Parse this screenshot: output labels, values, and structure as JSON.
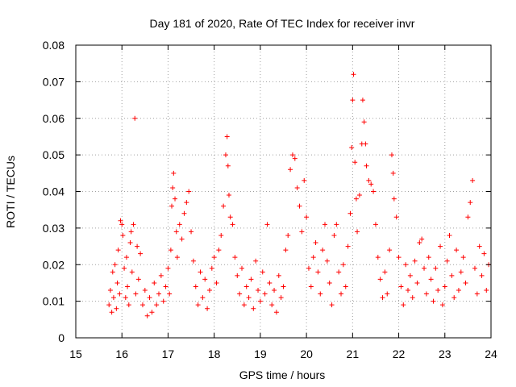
{
  "chart_data": {
    "type": "scatter",
    "title": "Day 181 of 2020, Rate Of TEC Index for receiver invr",
    "xlabel": "GPS time / hours",
    "ylabel": "ROTI / TECUs",
    "xlim": [
      15,
      24
    ],
    "ylim": [
      0,
      0.08
    ],
    "xticks": [
      "15",
      "16",
      "17",
      "18",
      "19",
      "20",
      "21",
      "22",
      "23",
      "24"
    ],
    "yticks": [
      "0",
      "0.01",
      "0.02",
      "0.03",
      "0.04",
      "0.05",
      "0.06",
      "0.07",
      "0.08"
    ],
    "grid": true,
    "marker": "+",
    "color": "#ff0000",
    "series": [
      {
        "name": "ROTI",
        "points": [
          [
            15.72,
            0.009
          ],
          [
            15.75,
            0.013
          ],
          [
            15.78,
            0.007
          ],
          [
            15.8,
            0.018
          ],
          [
            15.82,
            0.011
          ],
          [
            15.85,
            0.02
          ],
          [
            15.88,
            0.008
          ],
          [
            15.9,
            0.015
          ],
          [
            15.92,
            0.024
          ],
          [
            15.95,
            0.012
          ],
          [
            15.97,
            0.032
          ],
          [
            16.0,
            0.031
          ],
          [
            16.02,
            0.028
          ],
          [
            16.05,
            0.019
          ],
          [
            16.08,
            0.011
          ],
          [
            16.1,
            0.022
          ],
          [
            16.12,
            0.014
          ],
          [
            16.15,
            0.009
          ],
          [
            16.18,
            0.026
          ],
          [
            16.2,
            0.029
          ],
          [
            16.22,
            0.018
          ],
          [
            16.25,
            0.031
          ],
          [
            16.28,
            0.06
          ],
          [
            16.3,
            0.012
          ],
          [
            16.33,
            0.025
          ],
          [
            16.36,
            0.016
          ],
          [
            16.4,
            0.023
          ],
          [
            16.45,
            0.009
          ],
          [
            16.5,
            0.013
          ],
          [
            16.55,
            0.006
          ],
          [
            16.6,
            0.011
          ],
          [
            16.65,
            0.007
          ],
          [
            16.7,
            0.015
          ],
          [
            16.75,
            0.009
          ],
          [
            16.8,
            0.012
          ],
          [
            16.85,
            0.017
          ],
          [
            16.9,
            0.01
          ],
          [
            16.95,
            0.014
          ],
          [
            17.0,
            0.019
          ],
          [
            17.03,
            0.012
          ],
          [
            17.06,
            0.024
          ],
          [
            17.08,
            0.036
          ],
          [
            17.1,
            0.041
          ],
          [
            17.12,
            0.045
          ],
          [
            17.15,
            0.038
          ],
          [
            17.18,
            0.029
          ],
          [
            17.2,
            0.022
          ],
          [
            17.25,
            0.031
          ],
          [
            17.3,
            0.027
          ],
          [
            17.35,
            0.034
          ],
          [
            17.4,
            0.037
          ],
          [
            17.45,
            0.04
          ],
          [
            17.5,
            0.029
          ],
          [
            17.55,
            0.021
          ],
          [
            17.6,
            0.014
          ],
          [
            17.65,
            0.009
          ],
          [
            17.7,
            0.018
          ],
          [
            17.75,
            0.011
          ],
          [
            17.8,
            0.016
          ],
          [
            17.85,
            0.008
          ],
          [
            17.9,
            0.013
          ],
          [
            17.95,
            0.019
          ],
          [
            18.0,
            0.022
          ],
          [
            18.05,
            0.015
          ],
          [
            18.1,
            0.024
          ],
          [
            18.15,
            0.028
          ],
          [
            18.2,
            0.036
          ],
          [
            18.25,
            0.05
          ],
          [
            18.28,
            0.055
          ],
          [
            18.3,
            0.047
          ],
          [
            18.32,
            0.039
          ],
          [
            18.35,
            0.033
          ],
          [
            18.4,
            0.031
          ],
          [
            18.45,
            0.022
          ],
          [
            18.5,
            0.017
          ],
          [
            18.55,
            0.012
          ],
          [
            18.6,
            0.019
          ],
          [
            18.65,
            0.009
          ],
          [
            18.7,
            0.014
          ],
          [
            18.75,
            0.011
          ],
          [
            18.8,
            0.016
          ],
          [
            18.85,
            0.008
          ],
          [
            18.9,
            0.021
          ],
          [
            18.95,
            0.013
          ],
          [
            19.0,
            0.01
          ],
          [
            19.05,
            0.018
          ],
          [
            19.1,
            0.012
          ],
          [
            19.15,
            0.031
          ],
          [
            19.2,
            0.015
          ],
          [
            19.25,
            0.009
          ],
          [
            19.3,
            0.013
          ],
          [
            19.35,
            0.007
          ],
          [
            19.4,
            0.017
          ],
          [
            19.45,
            0.011
          ],
          [
            19.5,
            0.014
          ],
          [
            19.55,
            0.024
          ],
          [
            19.6,
            0.028
          ],
          [
            19.65,
            0.046
          ],
          [
            19.7,
            0.05
          ],
          [
            19.75,
            0.049
          ],
          [
            19.8,
            0.041
          ],
          [
            19.85,
            0.036
          ],
          [
            19.9,
            0.029
          ],
          [
            19.95,
            0.043
          ],
          [
            20.0,
            0.033
          ],
          [
            20.05,
            0.019
          ],
          [
            20.1,
            0.014
          ],
          [
            20.15,
            0.022
          ],
          [
            20.2,
            0.026
          ],
          [
            20.25,
            0.018
          ],
          [
            20.3,
            0.012
          ],
          [
            20.35,
            0.024
          ],
          [
            20.4,
            0.031
          ],
          [
            20.45,
            0.021
          ],
          [
            20.5,
            0.015
          ],
          [
            20.55,
            0.009
          ],
          [
            20.6,
            0.028
          ],
          [
            20.65,
            0.031
          ],
          [
            20.7,
            0.018
          ],
          [
            20.75,
            0.012
          ],
          [
            20.8,
            0.02
          ],
          [
            20.85,
            0.014
          ],
          [
            20.9,
            0.025
          ],
          [
            20.95,
            0.034
          ],
          [
            20.98,
            0.052
          ],
          [
            21.0,
            0.065
          ],
          [
            21.02,
            0.072
          ],
          [
            21.05,
            0.048
          ],
          [
            21.08,
            0.038
          ],
          [
            21.1,
            0.029
          ],
          [
            21.15,
            0.039
          ],
          [
            21.2,
            0.053
          ],
          [
            21.22,
            0.065
          ],
          [
            21.25,
            0.059
          ],
          [
            21.28,
            0.053
          ],
          [
            21.3,
            0.047
          ],
          [
            21.35,
            0.043
          ],
          [
            21.4,
            0.042
          ],
          [
            21.45,
            0.04
          ],
          [
            21.5,
            0.031
          ],
          [
            21.55,
            0.022
          ],
          [
            21.6,
            0.016
          ],
          [
            21.65,
            0.011
          ],
          [
            21.7,
            0.018
          ],
          [
            21.75,
            0.012
          ],
          [
            21.8,
            0.024
          ],
          [
            21.85,
            0.05
          ],
          [
            21.88,
            0.045
          ],
          [
            21.9,
            0.038
          ],
          [
            21.95,
            0.033
          ],
          [
            22.0,
            0.022
          ],
          [
            22.05,
            0.014
          ],
          [
            22.1,
            0.009
          ],
          [
            22.15,
            0.02
          ],
          [
            22.2,
            0.013
          ],
          [
            22.25,
            0.017
          ],
          [
            22.3,
            0.011
          ],
          [
            22.35,
            0.021
          ],
          [
            22.4,
            0.015
          ],
          [
            22.45,
            0.026
          ],
          [
            22.5,
            0.027
          ],
          [
            22.55,
            0.019
          ],
          [
            22.6,
            0.012
          ],
          [
            22.65,
            0.022
          ],
          [
            22.7,
            0.016
          ],
          [
            22.75,
            0.01
          ],
          [
            22.8,
            0.019
          ],
          [
            22.85,
            0.013
          ],
          [
            22.9,
            0.025
          ],
          [
            22.95,
            0.009
          ],
          [
            23.0,
            0.014
          ],
          [
            23.05,
            0.021
          ],
          [
            23.1,
            0.028
          ],
          [
            23.15,
            0.017
          ],
          [
            23.2,
            0.011
          ],
          [
            23.25,
            0.024
          ],
          [
            23.3,
            0.013
          ],
          [
            23.35,
            0.018
          ],
          [
            23.4,
            0.022
          ],
          [
            23.45,
            0.015
          ],
          [
            23.5,
            0.033
          ],
          [
            23.55,
            0.037
          ],
          [
            23.6,
            0.043
          ],
          [
            23.65,
            0.019
          ],
          [
            23.7,
            0.012
          ],
          [
            23.75,
            0.025
          ],
          [
            23.8,
            0.017
          ],
          [
            23.85,
            0.023
          ],
          [
            23.9,
            0.013
          ],
          [
            23.95,
            0.02
          ]
        ]
      }
    ]
  }
}
